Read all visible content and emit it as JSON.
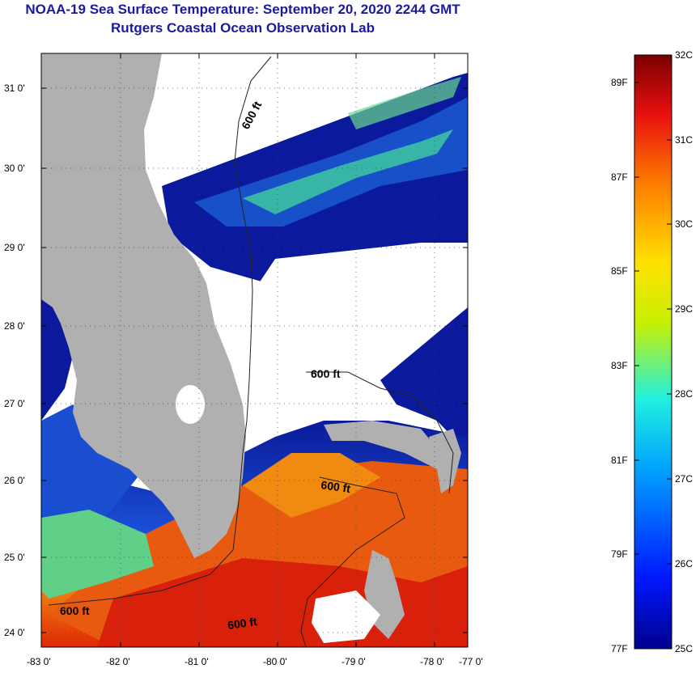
{
  "header": {
    "title": "NOAA-19 Sea Surface Temperature:  September 20, 2020 2244 GMT",
    "subtitle": "Rutgers Coastal Ocean Observation Lab"
  },
  "map": {
    "lat_labels": [
      "31 0'",
      "30 0'",
      "29 0'",
      "28 0'",
      "27 0'",
      "26 0'",
      "25 0'",
      "24 0'"
    ],
    "lon_labels": [
      "-83 0'",
      "-82 0'",
      "-81 0'",
      "-80 0'",
      "-79 0'",
      "-78 0'",
      "-77 0'"
    ],
    "contour_label": "600 ft",
    "colors": {
      "land": "#b0b0b0",
      "cloud": "#ffffff",
      "cold": "#08128c",
      "warm": "#e23a0a"
    }
  },
  "colorbar": {
    "fahrenheit_labels": [
      "89F",
      "87F",
      "85F",
      "83F",
      "81F",
      "79F",
      "77F"
    ],
    "celsius_labels": [
      "32C",
      "31C",
      "30C",
      "29C",
      "28C",
      "27C",
      "26C",
      "25C"
    ]
  }
}
